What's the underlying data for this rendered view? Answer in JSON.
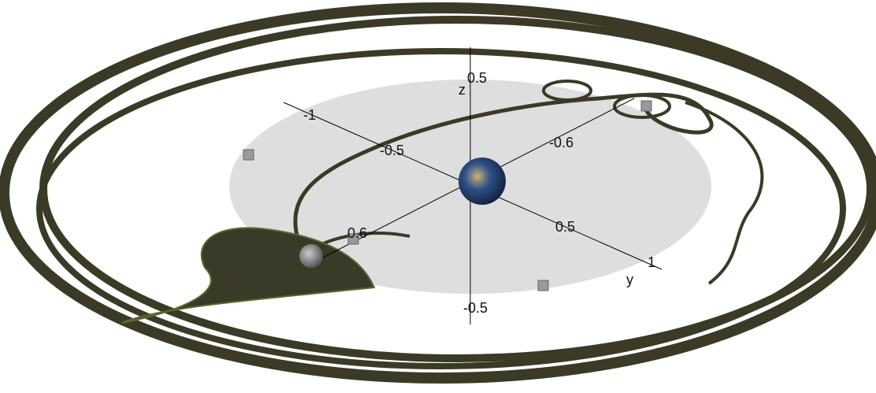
{
  "axis_labels": [
    "z",
    "y"
  ],
  "tick_labels": [
    "0.5",
    "-1",
    "-0.5",
    "-0.6",
    "0.6",
    "0.5",
    "1",
    "-0.5"
  ]
}
